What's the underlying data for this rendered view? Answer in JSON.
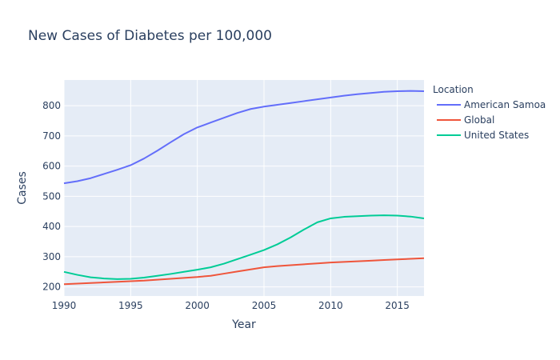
{
  "chart_data": {
    "type": "line",
    "title": "New Cases of Diabetes per 100,000",
    "xlabel": "Year",
    "ylabel": "Cases",
    "xlim": [
      1990,
      2017
    ],
    "ylim": [
      170,
      885
    ],
    "xticks": [
      1990,
      1995,
      2000,
      2005,
      2010,
      2015
    ],
    "yticks": [
      200,
      300,
      400,
      500,
      600,
      700,
      800
    ],
    "grid": true,
    "legend_title": "Location",
    "legend_placement": "right",
    "x": [
      1990,
      1991,
      1992,
      1993,
      1994,
      1995,
      1996,
      1997,
      1998,
      1999,
      2000,
      2001,
      2002,
      2003,
      2004,
      2005,
      2006,
      2007,
      2008,
      2009,
      2010,
      2011,
      2012,
      2013,
      2014,
      2015,
      2016,
      2017
    ],
    "series": [
      {
        "name": "American Samoa",
        "color": "#636efa",
        "values": [
          543,
          550,
          560,
          574,
          588,
          603,
          625,
          651,
          679,
          706,
          728,
          744,
          760,
          776,
          789,
          797,
          803,
          809,
          815,
          821,
          827,
          833,
          838,
          842,
          846,
          848,
          849,
          848
        ]
      },
      {
        "name": "Global",
        "color": "#ef553b",
        "values": [
          209,
          211,
          213,
          215,
          217,
          219,
          221,
          224,
          227,
          230,
          233,
          237,
          244,
          251,
          258,
          265,
          269,
          272,
          275,
          278,
          281,
          283,
          285,
          287,
          289,
          291,
          293,
          295
        ]
      },
      {
        "name": "United States",
        "color": "#00cc96",
        "values": [
          250,
          240,
          232,
          228,
          226,
          227,
          231,
          237,
          243,
          250,
          257,
          265,
          277,
          292,
          307,
          322,
          341,
          364,
          390,
          414,
          427,
          432,
          434,
          436,
          437,
          436,
          433,
          427
        ]
      }
    ]
  }
}
